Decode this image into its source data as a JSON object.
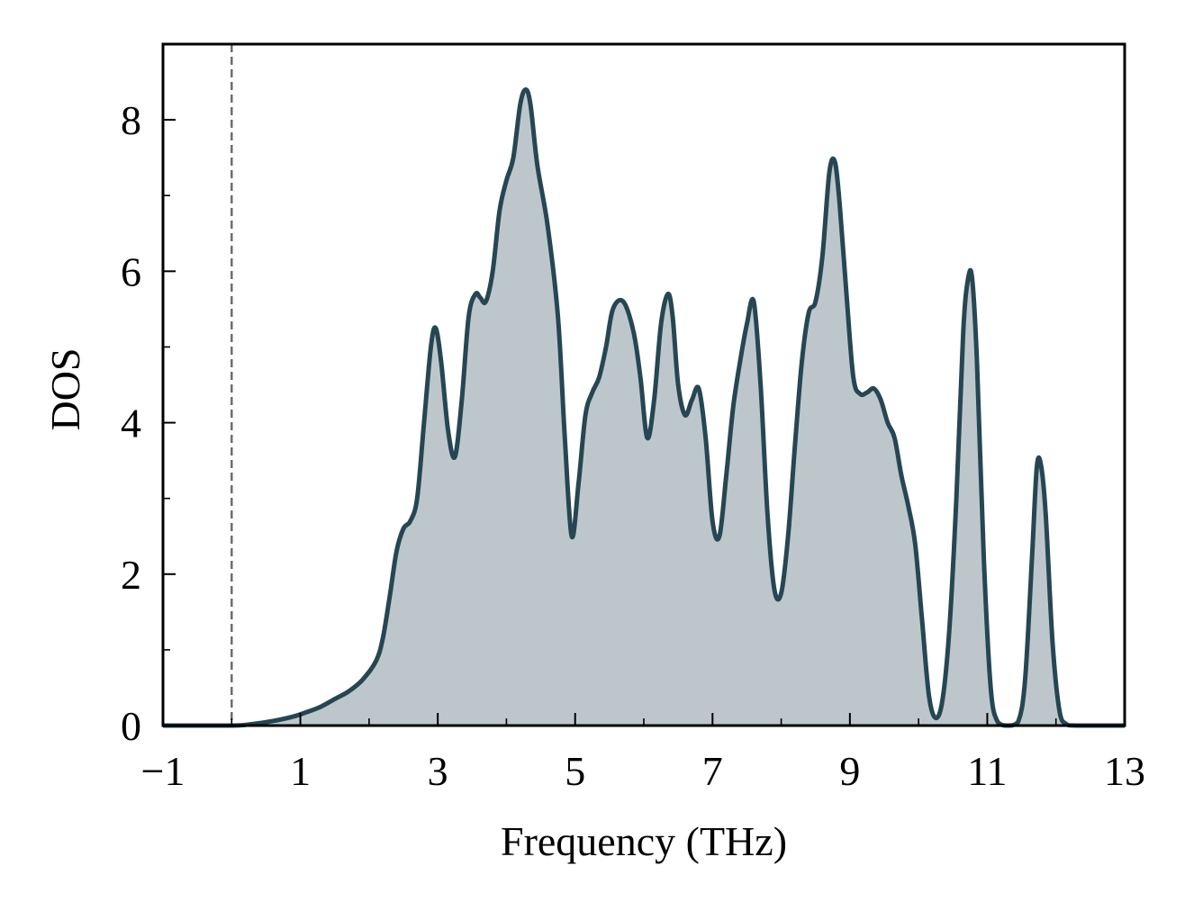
{
  "chart_data": {
    "type": "area",
    "title": "",
    "xlabel": "Frequency (THz)",
    "ylabel": "DOS",
    "xlim": [
      -1,
      13
    ],
    "ylim": [
      0,
      9
    ],
    "x_major_ticks": [
      -1,
      1,
      3,
      5,
      7,
      9,
      11,
      13
    ],
    "x_minor_ticks": [
      0,
      2,
      4,
      6,
      8,
      10,
      12
    ],
    "x_tick_labels": [
      "−1",
      "1",
      "3",
      "5",
      "7",
      "9",
      "11",
      "13"
    ],
    "y_major_ticks": [
      0,
      2,
      4,
      6,
      8
    ],
    "y_minor_ticks": [
      1,
      3,
      5,
      7
    ],
    "y_tick_labels": [
      "0",
      "2",
      "4",
      "6",
      "8"
    ],
    "grid": false,
    "legend": "none",
    "reference_line": {
      "x": 0,
      "style": "dashed",
      "color": "#6e6e6e"
    },
    "series": [
      {
        "line_color": "#264653",
        "fill_color": "#264653",
        "fill_opacity": 0.3,
        "x": [
          -1.0,
          0.0,
          0.3,
          0.6,
          0.9,
          1.1,
          1.3,
          1.5,
          1.7,
          1.9,
          2.1,
          2.2,
          2.3,
          2.4,
          2.5,
          2.6,
          2.7,
          2.8,
          2.9,
          2.97,
          3.05,
          3.15,
          3.25,
          3.35,
          3.45,
          3.55,
          3.62,
          3.7,
          3.8,
          3.9,
          4.0,
          4.1,
          4.2,
          4.28,
          4.35,
          4.45,
          4.6,
          4.75,
          4.85,
          4.95,
          5.05,
          5.15,
          5.25,
          5.35,
          5.45,
          5.55,
          5.7,
          5.85,
          5.95,
          6.05,
          6.15,
          6.25,
          6.35,
          6.42,
          6.5,
          6.6,
          6.7,
          6.8,
          6.9,
          7.0,
          7.1,
          7.2,
          7.3,
          7.4,
          7.5,
          7.6,
          7.7,
          7.8,
          7.9,
          8.0,
          8.1,
          8.2,
          8.3,
          8.4,
          8.5,
          8.6,
          8.7,
          8.78,
          8.85,
          8.95,
          9.05,
          9.15,
          9.25,
          9.35,
          9.45,
          9.55,
          9.65,
          9.75,
          9.85,
          9.95,
          10.05,
          10.15,
          10.25,
          10.35,
          10.45,
          10.55,
          10.65,
          10.72,
          10.78,
          10.85,
          10.95,
          11.05,
          11.15,
          11.3,
          11.45,
          11.55,
          11.65,
          11.72,
          11.78,
          11.85,
          11.95,
          12.05,
          12.15,
          12.3,
          13.0
        ],
        "y": [
          0.0,
          0.0,
          0.02,
          0.06,
          0.12,
          0.18,
          0.25,
          0.35,
          0.45,
          0.6,
          0.85,
          1.15,
          1.7,
          2.3,
          2.6,
          2.7,
          3.0,
          4.0,
          5.0,
          5.25,
          4.8,
          3.9,
          3.55,
          4.3,
          5.4,
          5.7,
          5.65,
          5.6,
          6.0,
          6.8,
          7.2,
          7.5,
          8.2,
          8.4,
          8.2,
          7.4,
          6.6,
          5.4,
          3.8,
          2.5,
          3.2,
          4.1,
          4.4,
          4.6,
          5.0,
          5.5,
          5.6,
          5.2,
          4.6,
          3.8,
          4.3,
          5.3,
          5.7,
          5.4,
          4.5,
          4.1,
          4.3,
          4.45,
          3.8,
          2.7,
          2.5,
          3.3,
          4.2,
          4.8,
          5.3,
          5.6,
          4.5,
          2.8,
          1.8,
          1.75,
          2.5,
          3.7,
          4.8,
          5.45,
          5.6,
          6.2,
          7.3,
          7.45,
          6.9,
          5.7,
          4.6,
          4.38,
          4.4,
          4.45,
          4.3,
          4.0,
          3.8,
          3.3,
          2.9,
          2.4,
          1.4,
          0.4,
          0.1,
          0.35,
          1.3,
          3.0,
          5.2,
          5.9,
          5.9,
          4.8,
          2.2,
          0.5,
          0.05,
          0.0,
          0.05,
          0.6,
          2.2,
          3.4,
          3.45,
          2.8,
          1.1,
          0.2,
          0.02,
          0.0,
          0.0
        ]
      }
    ]
  }
}
